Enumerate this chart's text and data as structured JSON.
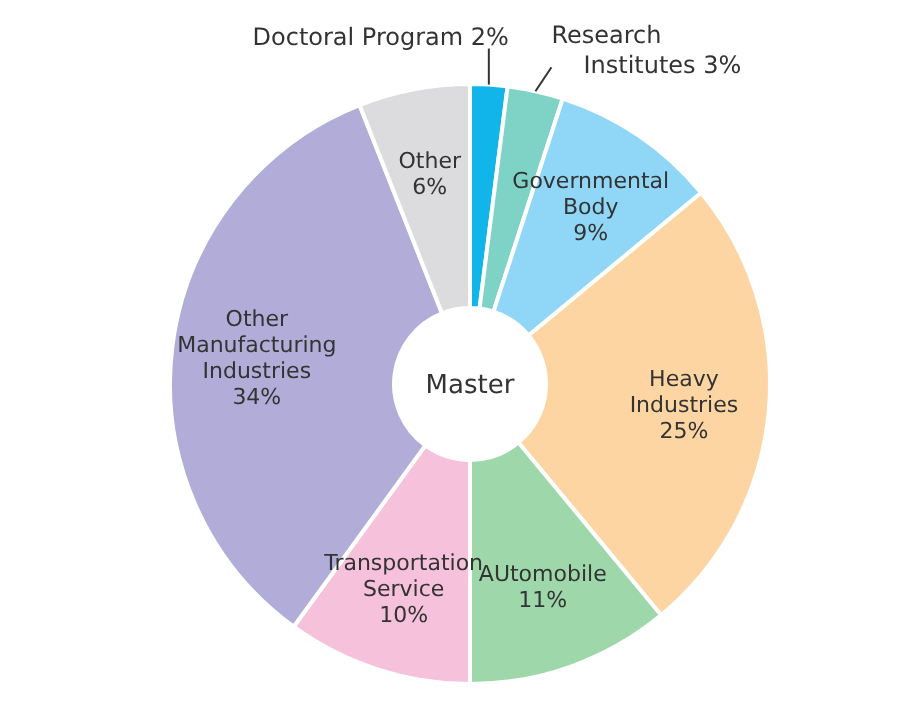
{
  "chart_data": {
    "type": "donut",
    "title": "Master",
    "categories": [
      "Doctoral Program",
      "Research Institutes",
      "Governmental Body",
      "Heavy Industries",
      "AUtomobile",
      "Transportation Service",
      "Other Manufacturing Industries",
      "Other"
    ],
    "values": [
      2,
      3,
      9,
      25,
      11,
      10,
      34,
      6
    ],
    "value_labels": [
      "2%",
      "3%",
      "9%",
      "25%",
      "11%",
      "10%",
      "34%",
      "6%"
    ],
    "colors": [
      "#12b5ea",
      "#7fd3c6",
      "#8fd6f7",
      "#fcd5a2",
      "#9ed8aa",
      "#f6c1da",
      "#b1acd8",
      "#dcdcde"
    ]
  }
}
